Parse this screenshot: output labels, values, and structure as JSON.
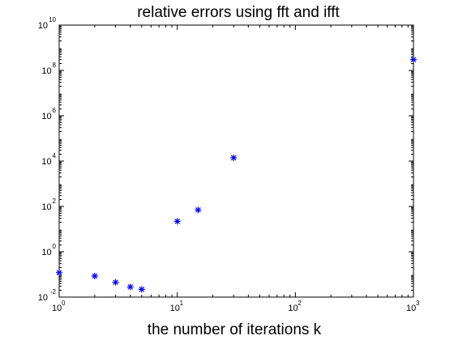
{
  "chart_data": {
    "type": "scatter",
    "title": "relative errors using fft and ifft",
    "xlabel": "the number of iterations k",
    "ylabel": "",
    "x_scale": "log",
    "y_scale": "log",
    "xlim": [
      1,
      1000
    ],
    "ylim": [
      0.01,
      10000000000
    ],
    "grid": false,
    "marker": "*",
    "color": "#0000ff",
    "x_ticks": [
      {
        "base": "10",
        "exp": "0",
        "value": 1
      },
      {
        "base": "10",
        "exp": "1",
        "value": 10
      },
      {
        "base": "10",
        "exp": "2",
        "value": 100
      },
      {
        "base": "10",
        "exp": "3",
        "value": 1000
      }
    ],
    "y_ticks": [
      {
        "base": "10",
        "exp": "-2",
        "value": 0.01
      },
      {
        "base": "10",
        "exp": "0",
        "value": 1
      },
      {
        "base": "10",
        "exp": "2",
        "value": 100
      },
      {
        "base": "10",
        "exp": "4",
        "value": 10000
      },
      {
        "base": "10",
        "exp": "6",
        "value": 1000000
      },
      {
        "base": "10",
        "exp": "8",
        "value": 100000000
      },
      {
        "base": "10",
        "exp": "10",
        "value": 10000000000
      }
    ],
    "points": [
      {
        "x": 1,
        "y": 0.12
      },
      {
        "x": 2,
        "y": 0.085
      },
      {
        "x": 3,
        "y": 0.045
      },
      {
        "x": 4,
        "y": 0.028
      },
      {
        "x": 5,
        "y": 0.022
      },
      {
        "x": 10,
        "y": 22
      },
      {
        "x": 15,
        "y": 70
      },
      {
        "x": 30,
        "y": 14000
      },
      {
        "x": 1000,
        "y": 300000000
      }
    ]
  }
}
